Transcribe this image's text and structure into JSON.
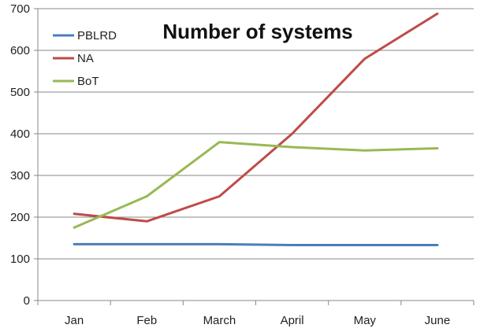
{
  "chart_data": {
    "type": "line",
    "title": "Number of systems",
    "xlabel": "",
    "ylabel": "",
    "categories": [
      "Jan",
      "Feb",
      "March",
      "April",
      "May",
      "June"
    ],
    "ylim": [
      0,
      700
    ],
    "yticks": [
      0,
      100,
      200,
      300,
      400,
      500,
      600,
      700
    ],
    "grid": true,
    "legend_position": "top-left",
    "series": [
      {
        "name": "PBLRD",
        "color": "#4a7ebb",
        "values": [
          135,
          135,
          135,
          133,
          133,
          133
        ]
      },
      {
        "name": "NA",
        "color": "#be4b48",
        "values": [
          208,
          190,
          250,
          400,
          580,
          688
        ]
      },
      {
        "name": "BoT",
        "color": "#98b954",
        "values": [
          175,
          250,
          380,
          368,
          360,
          365
        ]
      }
    ]
  }
}
